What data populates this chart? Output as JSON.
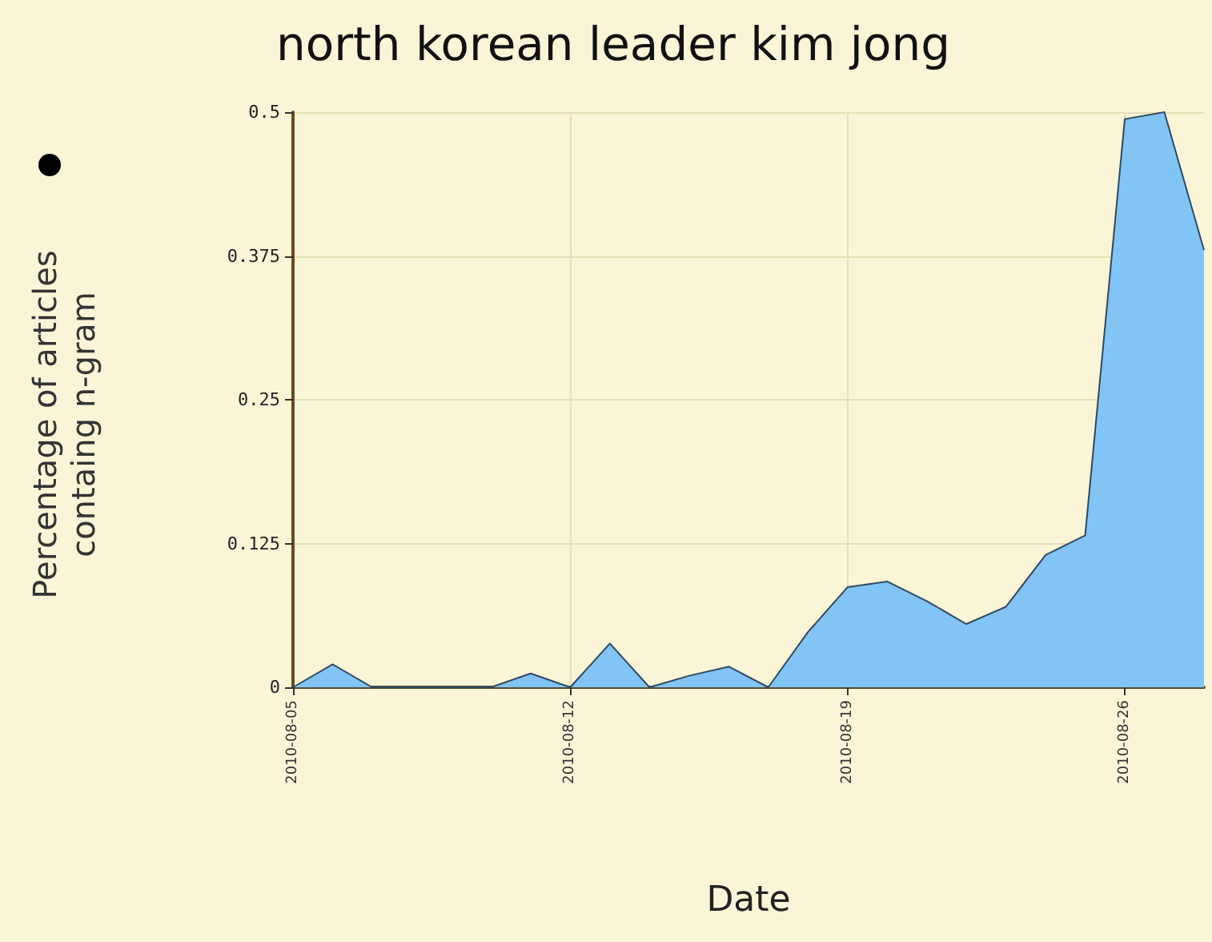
{
  "chart_data": {
    "type": "area",
    "title": "north korean leader kim jong",
    "xlabel": "Date",
    "ylabel": "Percentage of articles\ncontaing n-gram",
    "x": [
      "2010-08-05",
      "2010-08-06",
      "2010-08-07",
      "2010-08-08",
      "2010-08-09",
      "2010-08-10",
      "2010-08-11",
      "2010-08-12",
      "2010-08-13",
      "2010-08-14",
      "2010-08-15",
      "2010-08-16",
      "2010-08-17",
      "2010-08-18",
      "2010-08-19",
      "2010-08-20",
      "2010-08-21",
      "2010-08-22",
      "2010-08-23",
      "2010-08-24",
      "2010-08-25",
      "2010-08-26",
      "2010-08-27",
      "2010-08-28"
    ],
    "series": [
      {
        "color": "#82c4f6",
        "values": [
          0,
          0.02,
          0,
          0,
          0,
          0,
          0.012,
          0,
          0.038,
          0,
          0.01,
          0.018,
          0,
          0.048,
          0.087,
          0.092,
          0.075,
          0.055,
          0.07,
          0.115,
          0.132,
          0.494,
          0.5,
          0.38
        ]
      }
    ],
    "xlim": [
      "2010-08-05",
      "2010-08-28"
    ],
    "xticks": [
      "2010-08-05",
      "2010-08-12",
      "2010-08-19",
      "2010-08-26"
    ],
    "ylim": [
      0,
      0.5
    ],
    "yticks": [
      0,
      0.125,
      0.25,
      0.375,
      0.5
    ],
    "grid": true,
    "marker": "none"
  }
}
